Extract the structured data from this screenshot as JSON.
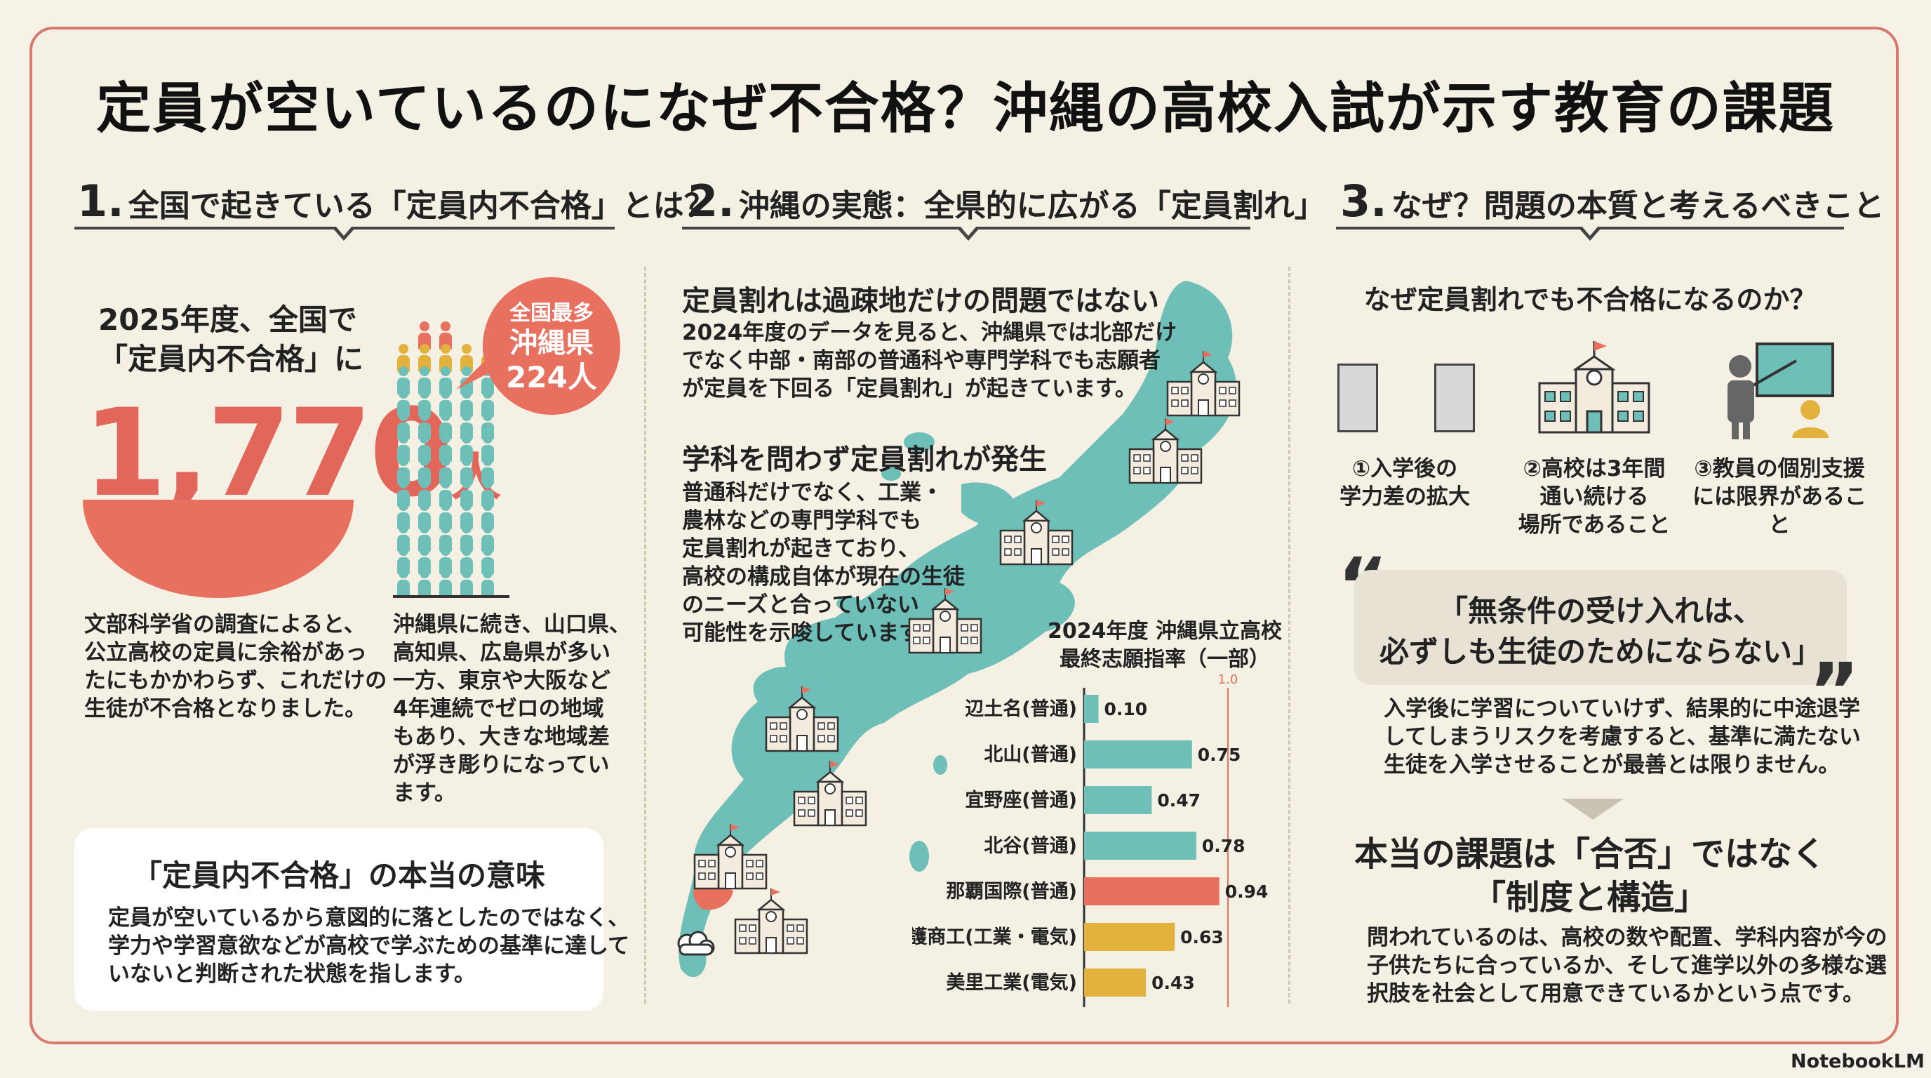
{
  "title": "定員が空いているのになぜ不合格？沖縄の高校入試が示す教育の課題",
  "sections": [
    {
      "num": "1.",
      "label": "全国で起きている「定員内不合格」とは？"
    },
    {
      "num": "2.",
      "label": "沖縄の実態：全県的に広がる「定員割れ」"
    },
    {
      "num": "3.",
      "label": "なぜ？問題の本質と考えるべきこと"
    }
  ],
  "s1": {
    "lead_lines": [
      "2025年度、全国で",
      "「定員内不合格」に"
    ],
    "big_number": "1,770",
    "big_unit": "人",
    "badge_lines": [
      "全国最多",
      "沖縄県",
      "224人"
    ],
    "left_text": [
      "文部科学省の調査によると、",
      "公立高校の定員に余裕があっ",
      "たにもかかわらず、これだけの",
      "生徒が不合格となりました。"
    ],
    "right_text": [
      "沖縄県に続き、山口県、",
      "高知県、広島県が多い",
      "一方、東京や大阪など",
      "4年連続でゼロの地域",
      "もあり、大きな地域差",
      "が浮き彫りになってい",
      "ます。"
    ],
    "box_title": "「定員内不合格」の本当の意味",
    "box_text": [
      "定員が空いているから意図的に落としたのではなく、",
      "学力や学習意欲などが高校で学ぶための基準に達して",
      "いないと判断された状態を指します。"
    ]
  },
  "s2": {
    "h1": "定員割れは過疎地だけの問題ではない",
    "p1": [
      "2024年度のデータを見ると、沖縄県では北部だけ",
      "でなく中部・南部の普通科や専門学科でも志願者",
      "が定員を下回る「定員割れ」が起きています。"
    ],
    "h2": "学科を問わず定員割れが発生",
    "p2": [
      "普通科だけでなく、工業・",
      "農林などの専門学科でも",
      "定員割れが起きており、",
      "高校の構成自体が現在の生徒",
      "のニーズと合っていない",
      "可能性を示唆しています。"
    ],
    "colors": {
      "map": "#6ebfb8",
      "highlight": "#e8705f",
      "teal": "#6ebfb8",
      "red": "#e8705f",
      "gold": "#e3b23c"
    }
  },
  "chart_data": {
    "type": "bar",
    "orientation": "horizontal",
    "title_lines": [
      "2024年度 沖縄県立高校",
      "最終志願指率（一部）"
    ],
    "reference_line": {
      "value": 1.0,
      "label": "1.0"
    },
    "xlim": [
      0,
      1.0
    ],
    "categories": [
      "辺土名(普通)",
      "北山(普通)",
      "宜野座(普通)",
      "北谷(普通)",
      "那覇国際(普通)",
      "名護商工(工業・電気)",
      "美里工業(電気)"
    ],
    "values": [
      0.1,
      0.75,
      0.47,
      0.78,
      0.94,
      0.63,
      0.43
    ],
    "value_labels": [
      "0.10",
      "0.75",
      "0.47",
      "0.78",
      "0.94",
      "0.63",
      "0.43"
    ],
    "bar_colors": [
      "#6ebfb8",
      "#6ebfb8",
      "#6ebfb8",
      "#6ebfb8",
      "#e8705f",
      "#e3b23c",
      "#e3b23c"
    ]
  },
  "s3": {
    "question": "なぜ定員割れでも不合格になるのか？",
    "reasons": [
      {
        "icon": "balance-bars-icon",
        "lines": [
          "①入学後の",
          "学力差の拡大"
        ]
      },
      {
        "icon": "school-building-icon",
        "lines": [
          "②高校は3年間",
          "通い続ける",
          "場所であること"
        ]
      },
      {
        "icon": "teacher-icon",
        "lines": [
          "③教員の個別支援",
          "には限界があること"
        ]
      }
    ],
    "quote_lines": [
      "「無条件の受け入れは、",
      "必ずしも生徒のためにならない」"
    ],
    "quote_text": [
      "入学後に学習についていけず、結果的に中途退学",
      "してしまうリスクを考慮すると、基準に満たない",
      "生徒を入学させることが最善とは限りません。"
    ],
    "conclusion_lines": [
      "本当の課題は「合否」ではなく",
      "「制度と構造」"
    ],
    "conclusion_text": [
      "問われているのは、高校の数や配置、学科内容が今の",
      "子供たちに合っているか、そして進学以外の多様な選",
      "択肢を社会として用意できているかという点です。"
    ]
  },
  "logo": "NotebookLM"
}
